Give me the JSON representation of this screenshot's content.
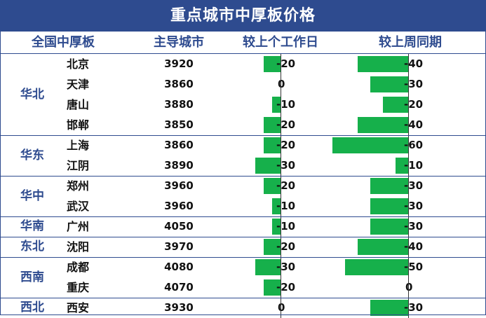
{
  "title": "重点城市中厚板价格",
  "headers": {
    "region": "全国中厚板",
    "city": "主导城市",
    "day": "较上个工作日",
    "week": "较上周同期"
  },
  "colors": {
    "header_bg": "#2e4b8f",
    "bar": "#16b04b",
    "accent": "#2e4b8f"
  },
  "chart_data": {
    "type": "table",
    "columns": [
      "全国中厚板",
      "主导城市",
      "",
      "较上个工作日",
      "较上周同期"
    ],
    "regions": [
      {
        "name": "华北",
        "rows": [
          0,
          1,
          2,
          3
        ]
      },
      {
        "name": "华东",
        "rows": [
          4,
          5
        ]
      },
      {
        "name": "华中",
        "rows": [
          6,
          7
        ]
      },
      {
        "name": "华南",
        "rows": [
          8
        ]
      },
      {
        "name": "东北",
        "rows": [
          9
        ]
      },
      {
        "name": "西南",
        "rows": [
          10,
          11
        ]
      },
      {
        "name": "西北",
        "rows": [
          12
        ]
      }
    ],
    "rows": [
      {
        "city": "北京",
        "price": 3920,
        "day": -20,
        "week": -40
      },
      {
        "city": "天津",
        "price": 3860,
        "day": 0,
        "week": -30
      },
      {
        "city": "唐山",
        "price": 3880,
        "day": -10,
        "week": -20
      },
      {
        "city": "邯郸",
        "price": 3850,
        "day": -20,
        "week": -40
      },
      {
        "city": "上海",
        "price": 3860,
        "day": -20,
        "week": -60
      },
      {
        "city": "江阴",
        "price": 3890,
        "day": -30,
        "week": -10
      },
      {
        "city": "郑州",
        "price": 3960,
        "day": -20,
        "week": -30
      },
      {
        "city": "武汉",
        "price": 3960,
        "day": -10,
        "week": -30
      },
      {
        "city": "广州",
        "price": 4050,
        "day": -10,
        "week": -30
      },
      {
        "city": "沈阳",
        "price": 3970,
        "day": -20,
        "week": -40
      },
      {
        "city": "成都",
        "price": 4080,
        "day": -30,
        "week": -50
      },
      {
        "city": "重庆",
        "price": 4070,
        "day": -20,
        "week": 0
      },
      {
        "city": "西安",
        "price": 3930,
        "day": 0,
        "week": -30
      }
    ]
  }
}
